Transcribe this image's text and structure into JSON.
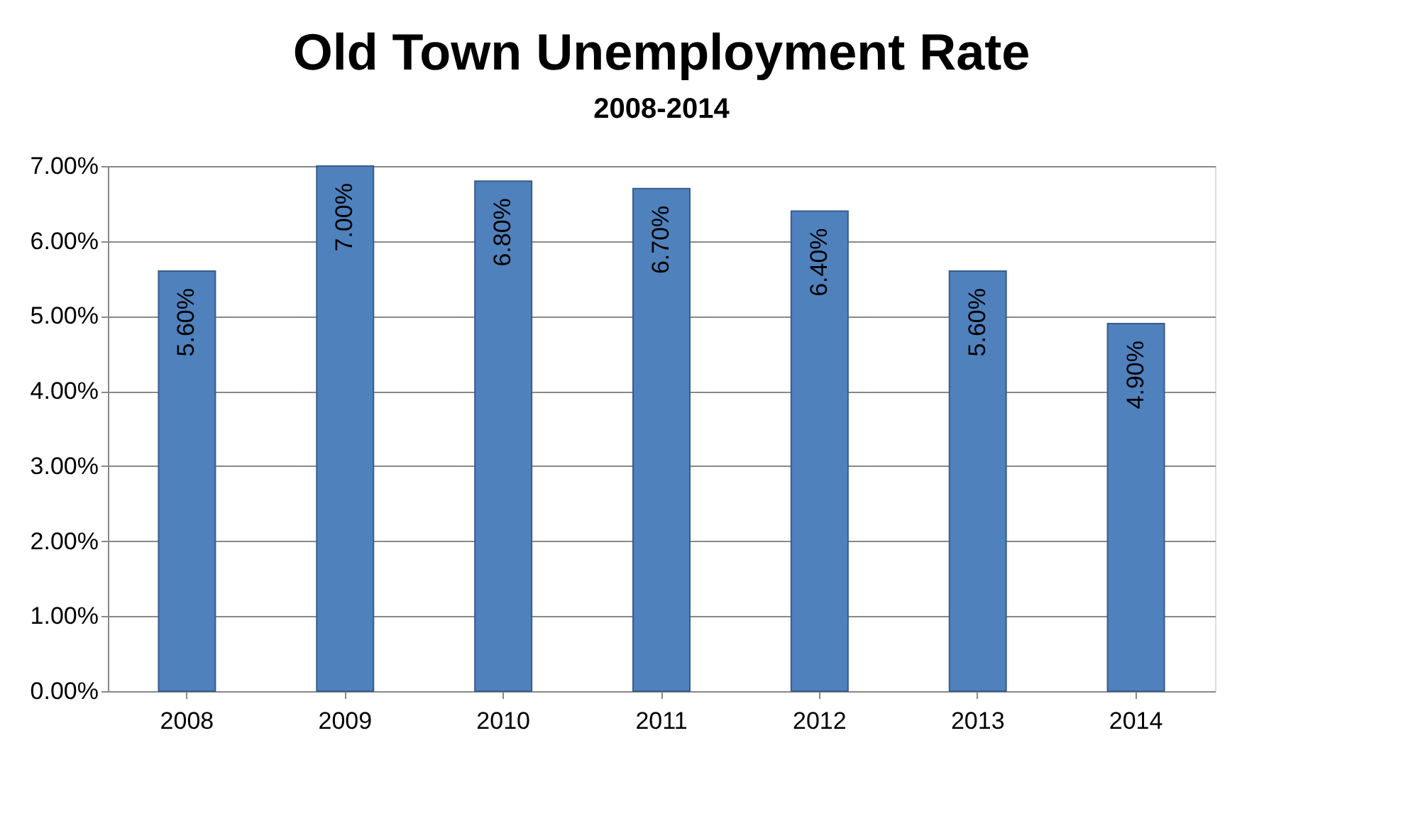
{
  "chart_data": {
    "type": "bar",
    "title": "Old Town Unemployment Rate",
    "subtitle": "2008-2014",
    "categories": [
      "2008",
      "2009",
      "2010",
      "2011",
      "2012",
      "2013",
      "2014"
    ],
    "values": [
      5.6,
      7.0,
      6.8,
      6.7,
      6.4,
      5.6,
      4.9
    ],
    "value_labels": [
      "5.60%",
      "7.00%",
      "6.80%",
      "6.70%",
      "6.40%",
      "5.60%",
      "4.90%"
    ],
    "color": "#4f81bd",
    "ylim": [
      0,
      7
    ],
    "yticks": [
      {
        "value": 0,
        "label": "0.00%"
      },
      {
        "value": 1,
        "label": "1.00%"
      },
      {
        "value": 2,
        "label": "2.00%"
      },
      {
        "value": 3,
        "label": "3.00%"
      },
      {
        "value": 4,
        "label": "4.00%"
      },
      {
        "value": 5,
        "label": "5.00%"
      },
      {
        "value": 6,
        "label": "6.00%"
      },
      {
        "value": 7,
        "label": "7.00%"
      }
    ],
    "grid": "y"
  }
}
